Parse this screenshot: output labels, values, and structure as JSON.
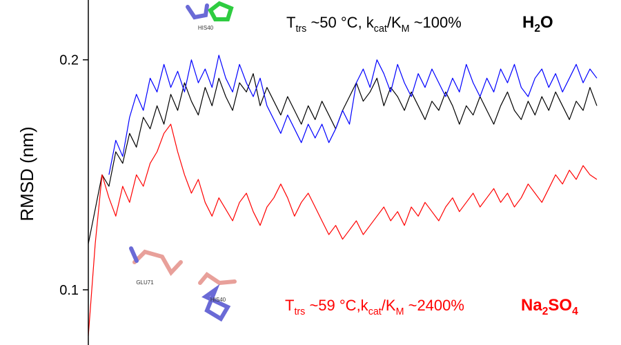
{
  "chart_data": {
    "type": "line",
    "y_label": "RMSD (nm)",
    "ylim": [
      0.076,
      0.226
    ],
    "yticks": [
      0.1,
      0.2
    ],
    "annotations": [
      {
        "parts": [
          "T",
          "trs",
          " ~50 °C, k",
          "cat",
          "/K",
          "M",
          " ~100%"
        ],
        "color": "#000000"
      },
      {
        "parts": [
          "H",
          "2",
          "O"
        ],
        "color": "#000000"
      },
      {
        "parts": [
          "T",
          "trs",
          " ~59 °C,k",
          "cat",
          "/K",
          "M",
          " ~2400%"
        ],
        "color": "#ff0000"
      },
      {
        "parts": [
          "Na",
          "2",
          "SO",
          "4"
        ],
        "color": "#ff0000"
      }
    ],
    "residue_labels": [
      "HIS40",
      "GLU71",
      "HIS40"
    ],
    "series": [
      {
        "color": "#000000",
        "values": [
          0.12,
          0.135,
          0.15,
          0.145,
          0.16,
          0.155,
          0.168,
          0.162,
          0.175,
          0.17,
          0.18,
          0.172,
          0.185,
          0.178,
          0.19,
          0.182,
          0.176,
          0.188,
          0.18,
          0.192,
          0.184,
          0.178,
          0.19,
          0.186,
          0.194,
          0.18,
          0.188,
          0.182,
          0.176,
          0.184,
          0.178,
          0.172,
          0.18,
          0.174,
          0.182,
          0.176,
          0.17,
          0.178,
          0.184,
          0.19,
          0.182,
          0.186,
          0.192,
          0.18,
          0.188,
          0.184,
          0.178,
          0.186,
          0.18,
          0.174,
          0.182,
          0.178,
          0.186,
          0.18,
          0.172,
          0.18,
          0.176,
          0.184,
          0.178,
          0.172,
          0.18,
          0.186,
          0.178,
          0.174,
          0.182,
          0.176,
          0.184,
          0.178,
          0.186,
          0.18,
          0.174,
          0.182,
          0.178,
          0.188,
          0.18
        ]
      },
      {
        "color": "#0000ff",
        "values": [
          null,
          null,
          null,
          0.15,
          0.165,
          0.158,
          0.175,
          0.185,
          0.178,
          0.192,
          0.186,
          0.198,
          0.188,
          0.195,
          0.186,
          0.2,
          0.19,
          0.196,
          0.188,
          0.202,
          0.192,
          0.186,
          0.198,
          0.19,
          0.184,
          0.192,
          0.18,
          0.174,
          0.168,
          0.176,
          0.17,
          0.164,
          0.172,
          0.166,
          0.172,
          0.164,
          0.17,
          0.178,
          0.172,
          0.19,
          0.196,
          0.188,
          0.2,
          0.194,
          0.186,
          0.198,
          0.19,
          0.184,
          0.194,
          0.188,
          0.196,
          0.19,
          0.184,
          0.192,
          0.186,
          0.198,
          0.19,
          0.184,
          0.192,
          0.186,
          0.196,
          0.19,
          0.198,
          0.188,
          0.184,
          0.192,
          0.196,
          0.188,
          0.194,
          0.186,
          0.192,
          0.198,
          0.19,
          0.196,
          0.192
        ]
      },
      {
        "color": "#ff0000",
        "values": [
          0.08,
          0.12,
          0.15,
          0.14,
          0.132,
          0.145,
          0.138,
          0.15,
          0.145,
          0.155,
          0.16,
          0.168,
          0.172,
          0.16,
          0.15,
          0.142,
          0.148,
          0.138,
          0.132,
          0.14,
          0.135,
          0.13,
          0.138,
          0.142,
          0.134,
          0.128,
          0.136,
          0.14,
          0.146,
          0.14,
          0.132,
          0.138,
          0.142,
          0.136,
          0.13,
          0.124,
          0.128,
          0.122,
          0.126,
          0.13,
          0.124,
          0.128,
          0.132,
          0.136,
          0.13,
          0.134,
          0.128,
          0.136,
          0.132,
          0.138,
          0.134,
          0.13,
          0.136,
          0.14,
          0.134,
          0.138,
          0.142,
          0.136,
          0.14,
          0.144,
          0.138,
          0.142,
          0.136,
          0.14,
          0.146,
          0.142,
          0.138,
          0.144,
          0.15,
          0.146,
          0.152,
          0.148,
          0.154,
          0.15,
          0.148
        ]
      }
    ]
  }
}
